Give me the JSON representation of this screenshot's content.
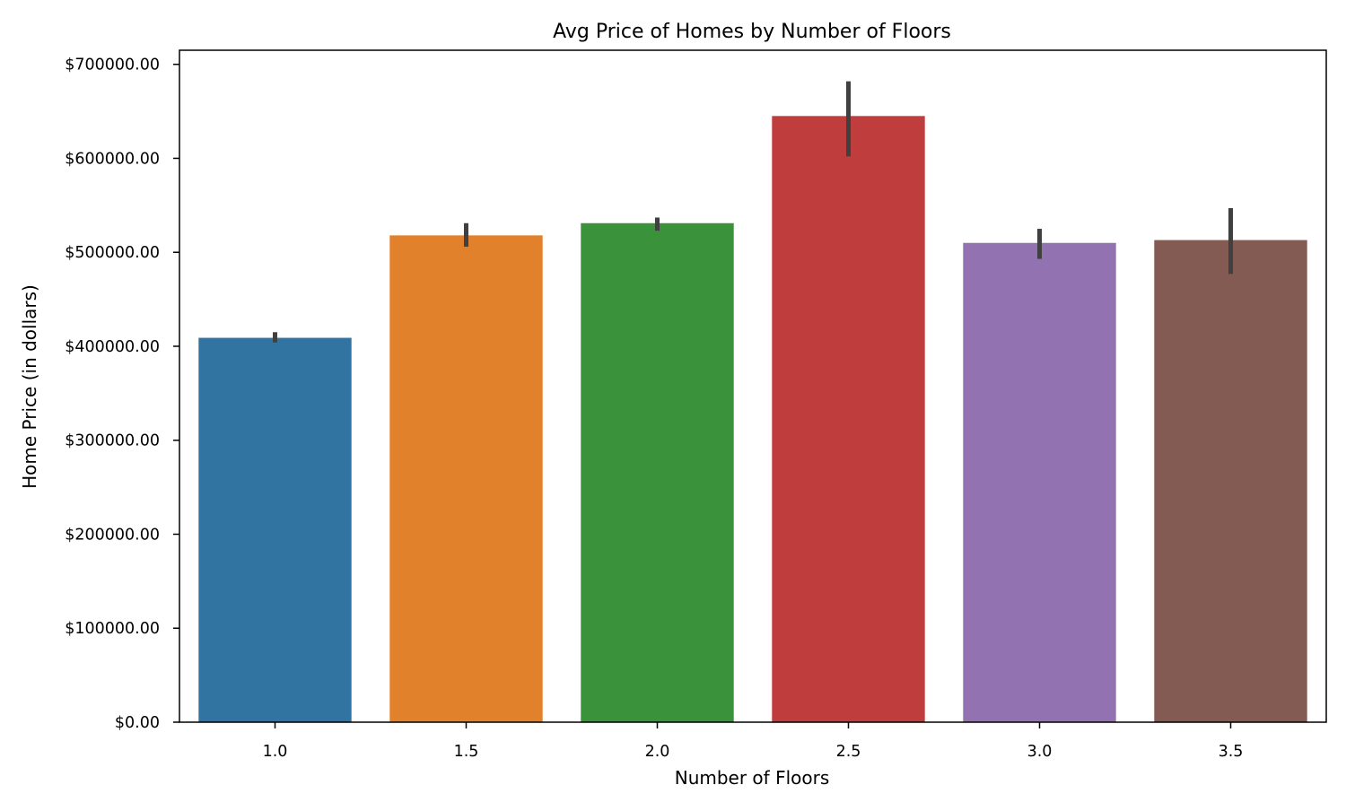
{
  "chart_data": {
    "type": "bar",
    "title": "Avg Price of Homes by Number of Floors",
    "xlabel": "Number of Floors",
    "ylabel": "Home Price (in dollars)",
    "categories": [
      "1.0",
      "1.5",
      "2.0",
      "2.5",
      "3.0",
      "3.5"
    ],
    "values": [
      409000,
      518000,
      531000,
      645000,
      510000,
      513000
    ],
    "error_bars": [
      [
        404000,
        415000
      ],
      [
        506000,
        531000
      ],
      [
        523000,
        537000
      ],
      [
        602000,
        682000
      ],
      [
        493000,
        525000
      ],
      [
        477000,
        547000
      ]
    ],
    "colors": [
      "#3274a1",
      "#e1812c",
      "#3a923a",
      "#c03d3e",
      "#9372b2",
      "#845b53"
    ],
    "error_bar_color": "#404040",
    "ylim": [
      0,
      715000
    ],
    "yticks": [
      0,
      100000,
      200000,
      300000,
      400000,
      500000,
      600000,
      700000
    ],
    "ytick_labels": [
      "$0.00",
      "$100000.00",
      "$200000.00",
      "$300000.00",
      "$400000.00",
      "$500000.00",
      "$600000.00",
      "$700000.00"
    ],
    "grid": false,
    "legend": "none"
  }
}
